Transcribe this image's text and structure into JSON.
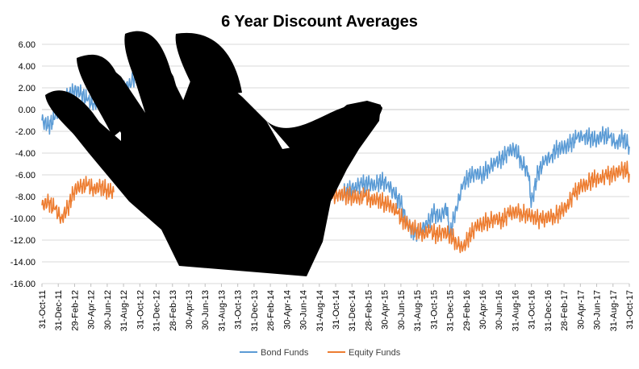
{
  "chart_data": {
    "type": "line",
    "title": "6 Year Discount Averages",
    "xlabel": "",
    "ylabel": "",
    "ylim": [
      -16,
      6
    ],
    "y_ticks": [
      "6.00",
      "4.00",
      "2.00",
      "0.00",
      "-2.00",
      "-4.00",
      "-6.00",
      "-8.00",
      "-10.00",
      "-12.00",
      "-14.00",
      "-16.00"
    ],
    "x_ticks": [
      "31-Oct-11",
      "31-Dec-11",
      "29-Feb-12",
      "30-Apr-12",
      "30-Jun-12",
      "31-Aug-12",
      "31-Oct-12",
      "31-Dec-12",
      "28-Feb-13",
      "30-Apr-13",
      "30-Jun-13",
      "31-Aug-13",
      "31-Oct-13",
      "31-Dec-13",
      "28-Feb-14",
      "30-Apr-14",
      "30-Jun-14",
      "31-Aug-14",
      "31-Oct-14",
      "31-Dec-14",
      "28-Feb-15",
      "30-Apr-15",
      "30-Jun-15",
      "31-Aug-15",
      "31-Oct-15",
      "31-Dec-15",
      "29-Feb-16",
      "30-Apr-16",
      "30-Jun-16",
      "31-Aug-16",
      "31-Oct-16",
      "31-Dec-16",
      "28-Feb-17",
      "30-Apr-17",
      "30-Jun-17",
      "31-Aug-17",
      "31-Oct-17"
    ],
    "grid": true,
    "legend_position": "bottom",
    "series": [
      {
        "name": "Bond Funds",
        "color": "#5B9BD5",
        "segments": [
          [
            [
              0,
              -1.0
            ],
            [
              0.4,
              -1.5
            ],
            [
              0.8,
              -0.8
            ],
            [
              1.2,
              0.5
            ],
            [
              1.6,
              1.2
            ],
            [
              2.0,
              1.8
            ],
            [
              2.4,
              1.5
            ],
            [
              2.8,
              0.8
            ],
            [
              3.2,
              0.5
            ],
            [
              3.6,
              1.2
            ],
            [
              4.0,
              0.8
            ]
          ],
          [
            [
              5.0,
              1.8
            ],
            [
              5.4,
              2.4
            ],
            [
              5.8,
              3.2
            ],
            [
              6.2,
              2.8
            ],
            [
              6.6,
              1.9
            ],
            [
              7.0,
              0.9
            ],
            [
              7.3,
              -0.6
            ]
          ],
          [
            [
              18.4,
              -7.8
            ],
            [
              18.8,
              -7.4
            ],
            [
              19.2,
              -7.1
            ],
            [
              19.6,
              -6.9
            ],
            [
              20.0,
              -6.8
            ],
            [
              20.4,
              -6.9
            ],
            [
              20.8,
              -6.6
            ],
            [
              21.2,
              -6.8
            ],
            [
              21.6,
              -7.8
            ],
            [
              22.0,
              -8.6
            ],
            [
              22.4,
              -10.5
            ],
            [
              22.8,
              -11.4
            ],
            [
              23.2,
              -11.0
            ],
            [
              23.6,
              -10.6
            ],
            [
              24.0,
              -9.5
            ],
            [
              24.4,
              -9.9
            ],
            [
              24.8,
              -9.0
            ],
            [
              25.0,
              -11.5
            ],
            [
              25.4,
              -9.0
            ],
            [
              25.8,
              -7.0
            ],
            [
              26.2,
              -6.1
            ],
            [
              26.6,
              -5.9
            ],
            [
              27.0,
              -6.0
            ],
            [
              27.4,
              -5.3
            ],
            [
              27.8,
              -4.9
            ],
            [
              28.2,
              -4.5
            ],
            [
              28.6,
              -3.9
            ],
            [
              29.0,
              -3.6
            ],
            [
              29.4,
              -4.8
            ],
            [
              29.8,
              -5.8
            ],
            [
              30.0,
              -8.6
            ],
            [
              30.4,
              -5.8
            ],
            [
              30.8,
              -4.8
            ],
            [
              31.2,
              -4.2
            ],
            [
              31.6,
              -3.6
            ],
            [
              32.0,
              -3.5
            ],
            [
              32.4,
              -3.1
            ],
            [
              32.8,
              -2.6
            ],
            [
              33.2,
              -2.4
            ],
            [
              33.6,
              -2.6
            ],
            [
              34.0,
              -2.8
            ],
            [
              34.4,
              -2.3
            ],
            [
              34.8,
              -2.6
            ],
            [
              35.2,
              -3.1
            ],
            [
              35.6,
              -2.6
            ],
            [
              36.0,
              -3.4
            ]
          ]
        ]
      },
      {
        "name": "Equity Funds",
        "color": "#ED7D31",
        "segments": [
          [
            [
              0,
              -8.8
            ],
            [
              0.4,
              -8.5
            ],
            [
              0.8,
              -9.2
            ],
            [
              1.2,
              -10.0
            ],
            [
              1.6,
              -9.0
            ],
            [
              2.0,
              -7.4
            ],
            [
              2.4,
              -7.0
            ],
            [
              2.8,
              -7.0
            ],
            [
              3.2,
              -7.3
            ],
            [
              3.6,
              -7.1
            ],
            [
              4.0,
              -7.4
            ],
            [
              4.4,
              -7.6
            ]
          ],
          [
            [
              17.8,
              -8.2
            ],
            [
              18.2,
              -7.7
            ],
            [
              18.6,
              -7.9
            ],
            [
              19.0,
              -8.0
            ],
            [
              19.4,
              -8.1
            ],
            [
              19.8,
              -8.0
            ],
            [
              20.2,
              -8.3
            ],
            [
              20.6,
              -8.3
            ],
            [
              21.0,
              -8.6
            ],
            [
              21.4,
              -8.8
            ],
            [
              21.8,
              -9.6
            ],
            [
              22.2,
              -10.3
            ],
            [
              22.6,
              -10.8
            ],
            [
              23.0,
              -11.1
            ],
            [
              23.4,
              -11.4
            ],
            [
              23.8,
              -11.2
            ],
            [
              24.2,
              -11.5
            ],
            [
              24.6,
              -11.3
            ],
            [
              25.0,
              -11.5
            ],
            [
              25.4,
              -12.2
            ],
            [
              25.8,
              -12.8
            ],
            [
              26.2,
              -11.6
            ],
            [
              26.6,
              -10.8
            ],
            [
              27.0,
              -10.5
            ],
            [
              27.4,
              -10.2
            ],
            [
              27.8,
              -10.1
            ],
            [
              28.2,
              -10.2
            ],
            [
              28.6,
              -9.6
            ],
            [
              29.0,
              -9.4
            ],
            [
              29.4,
              -9.5
            ],
            [
              29.8,
              -9.7
            ],
            [
              30.2,
              -9.9
            ],
            [
              30.6,
              -10.2
            ],
            [
              31.0,
              -9.9
            ],
            [
              31.4,
              -9.8
            ],
            [
              31.8,
              -9.4
            ],
            [
              32.2,
              -8.8
            ],
            [
              32.6,
              -7.8
            ],
            [
              33.0,
              -7.1
            ],
            [
              33.4,
              -6.8
            ],
            [
              33.8,
              -6.4
            ],
            [
              34.2,
              -6.3
            ],
            [
              34.6,
              -6.1
            ],
            [
              35.0,
              -6.0
            ],
            [
              35.4,
              -5.6
            ],
            [
              35.8,
              -5.5
            ],
            [
              36.0,
              -5.9
            ]
          ]
        ]
      }
    ]
  }
}
